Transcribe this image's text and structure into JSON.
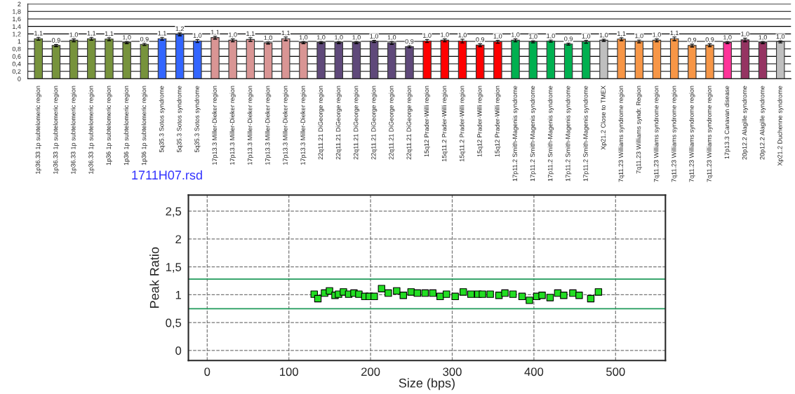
{
  "chart_data": [
    {
      "type": "bar",
      "categories": [
        "1p36.33 1p subtelomeric region",
        "1p36.33 1p subtelomeric region",
        "1p36.33 1p subtelomeric region",
        "1p36.33 1p subtelomeric region",
        "1p36 1p subtelomeric region",
        "1p36 1p subtelomeric region",
        "1p36 1p subtelomeric region",
        "5q35.3 Sotos syndrome",
        "5q35.3 Sotos syndrome",
        "5q35.3 Sotos syndrome",
        "17p13.3 Miller-Dieker region",
        "17p13.3 Miller-Dieker region",
        "17p13.3 Miller-Dieker region",
        "17p13.3 Miller-Dieker region",
        "17p13.3 Miller-Dieker region",
        "17p13.3 Miller-Dieker region",
        "22q11.21 DiGeorge region",
        "22q11.21 DiGeorge region",
        "22q11.21 DiGeorge region",
        "22q11.21 DiGeorge region",
        "22q11.21 DiGeorge region",
        "22q11.21 DiGeorge region",
        "15q12 Prader-Willi region",
        "15q11.2 Prader-Willi region",
        "15q11.2 Prader-Willi region",
        "15q12 Prader-Willi region",
        "15q12 Prader-Willi region",
        "17p11.2 Smith-Magenis syndrome",
        "17p11.2 Smith-Magenis syndrome",
        "17p11.2 Smith-Magenis syndrome",
        "17p11.2 Smith-Magenis syndrome",
        "17p11.2 Smith-Magenis syndrome",
        "Xp21.2 Close to TMEX",
        "7q11.23 Williams syndrome region",
        "7q11.23 Williams syndr. Region",
        "7q11.23 Williams syndrome region",
        "7q11.23 Williams syndrome region",
        "7q11.23 Williams syndrome region",
        "7q11.23 Williams syndrome region",
        "17p13.3 Canavan disease",
        "20p12.2 Alagille syndrome",
        "20p12.2 Alagille syndrome",
        "Xp21.2 Duchenne syndrome"
      ],
      "values": [
        1.07,
        0.89,
        1.03,
        1.07,
        1.06,
        0.97,
        0.92,
        1.07,
        1.19,
        1.01,
        1.1,
        1.03,
        1.05,
        0.96,
        1.07,
        0.97,
        0.97,
        0.97,
        0.97,
        1.0,
        0.96,
        0.86,
        1.01,
        1.03,
        1.01,
        0.9,
        0.99,
        1.03,
        0.99,
        1.01,
        0.93,
        0.99,
        1.03,
        1.06,
        1.0,
        1.03,
        1.07,
        0.89,
        0.9,
        0.97,
        1.04,
        0.97,
        0.99
      ],
      "value_labels": [
        "1,1",
        "0,9",
        "1,0",
        "1,1",
        "1,1",
        "1,0",
        "0,9",
        "1,1",
        "1,2",
        "1,0",
        "1,1",
        "1,0",
        "1,1",
        "1,0",
        "1,1",
        "1,0",
        "1,0",
        "1,0",
        "1,0",
        "1,0",
        "1,0",
        "0,9",
        "1,0",
        "1,0",
        "1,0",
        "0,9",
        "1,0",
        "1,0",
        "1,0",
        "1,0",
        "0,9",
        "1,0",
        "1,0",
        "1,1",
        "1,0",
        "1,0",
        "1,1",
        "0,9",
        "0,9",
        "1,0",
        "1,0",
        "1,0",
        "1,0"
      ],
      "errors": [
        0.04,
        0.03,
        0.04,
        0.04,
        0.04,
        0.03,
        0.03,
        0.04,
        0.04,
        0.04,
        0.04,
        0.04,
        0.05,
        0.03,
        0.05,
        0.03,
        0.03,
        0.03,
        0.03,
        0.03,
        0.04,
        0.03,
        0.04,
        0.04,
        0.05,
        0.04,
        0.04,
        0.04,
        0.03,
        0.03,
        0.03,
        0.04,
        0.03,
        0.04,
        0.04,
        0.04,
        0.05,
        0.04,
        0.04,
        0.03,
        0.05,
        0.03,
        0.03
      ],
      "colors": [
        "#77933c",
        "#77933c",
        "#77933c",
        "#77933c",
        "#77933c",
        "#77933c",
        "#77933c",
        "#3366ff",
        "#3366ff",
        "#3366ff",
        "#d99594",
        "#d99594",
        "#d99594",
        "#d99594",
        "#d99594",
        "#d99594",
        "#5f497a",
        "#5f497a",
        "#5f497a",
        "#5f497a",
        "#5f497a",
        "#5f497a",
        "#ff0000",
        "#ff0000",
        "#ff0000",
        "#ff0000",
        "#ff0000",
        "#00b050",
        "#00b050",
        "#00b050",
        "#00b050",
        "#00b050",
        "#bfbfbf",
        "#f79646",
        "#f79646",
        "#f79646",
        "#f79646",
        "#f79646",
        "#f79646",
        "#ff3399",
        "#953462",
        "#953462",
        "#bfbfbf"
      ],
      "ylim": [
        0,
        2
      ],
      "yticks": [
        0,
        {
          "value": 0.2,
          "label": "0,2"
        },
        {
          "value": 0.4,
          "label": "0,4"
        },
        {
          "value": 0.6,
          "label": "0,6"
        },
        {
          "value": 0.8,
          "label": "0,8"
        },
        1,
        {
          "value": 1.2,
          "label": "1,2"
        },
        {
          "value": 1.4,
          "label": "1,4"
        },
        {
          "value": 1.6,
          "label": "1,6"
        },
        {
          "value": 1.8,
          "label": "1,8"
        },
        2
      ],
      "grid": "y"
    },
    {
      "type": "scatter",
      "title": "1711H07.rsd",
      "xlabel": "Size (bps)",
      "ylabel": "Peak Ratio",
      "x": [
        131,
        135.5,
        143.7,
        149.7,
        156.5,
        160.8,
        166.8,
        173.2,
        179.7,
        185.7,
        193,
        198.5,
        204.5,
        213.5,
        221.7,
        232,
        240.1,
        249.6,
        257.3,
        266.7,
        276.2,
        285.2,
        292.9,
        303.6,
        313.5,
        322.9,
        331.5,
        337,
        346.5,
        357.2,
        364.5,
        374.4,
        385.5,
        394.5,
        403.5,
        410,
        419.8,
        429.2,
        436.5,
        447.7,
        455.4,
        469.6,
        479
      ],
      "values": [
        1.01,
        0.93,
        1.03,
        1.07,
        0.99,
        1.01,
        1.05,
        1.01,
        1.03,
        1.01,
        0.97,
        0.97,
        0.97,
        1.11,
        1.03,
        1.07,
        0.99,
        1.05,
        1.03,
        1.03,
        1.03,
        0.97,
        1.01,
        0.97,
        1.05,
        1.01,
        1.01,
        1.01,
        1.01,
        0.99,
        1.03,
        1.01,
        0.97,
        0.9,
        0.97,
        0.99,
        0.95,
        1.03,
        0.99,
        1.03,
        0.99,
        0.93,
        1.05
      ],
      "color": "#22dd22",
      "marker": "square",
      "xlim": [
        -23,
        561
      ],
      "xticks": [
        0,
        100,
        200,
        300,
        400,
        500
      ],
      "ylim": [
        -0.18,
        2.79
      ],
      "yticks": [
        0,
        {
          "value": 0.5,
          "label": "0,5"
        },
        1,
        {
          "value": 1.5,
          "label": "1,5"
        },
        2,
        {
          "value": 2.5,
          "label": "2,5"
        }
      ],
      "ref_lines": [
        {
          "axis": "y",
          "value": 1.28,
          "color": "#1f9a5a"
        },
        {
          "axis": "y",
          "value": 0.75,
          "color": "#1f9a5a"
        }
      ],
      "grid": true
    }
  ]
}
